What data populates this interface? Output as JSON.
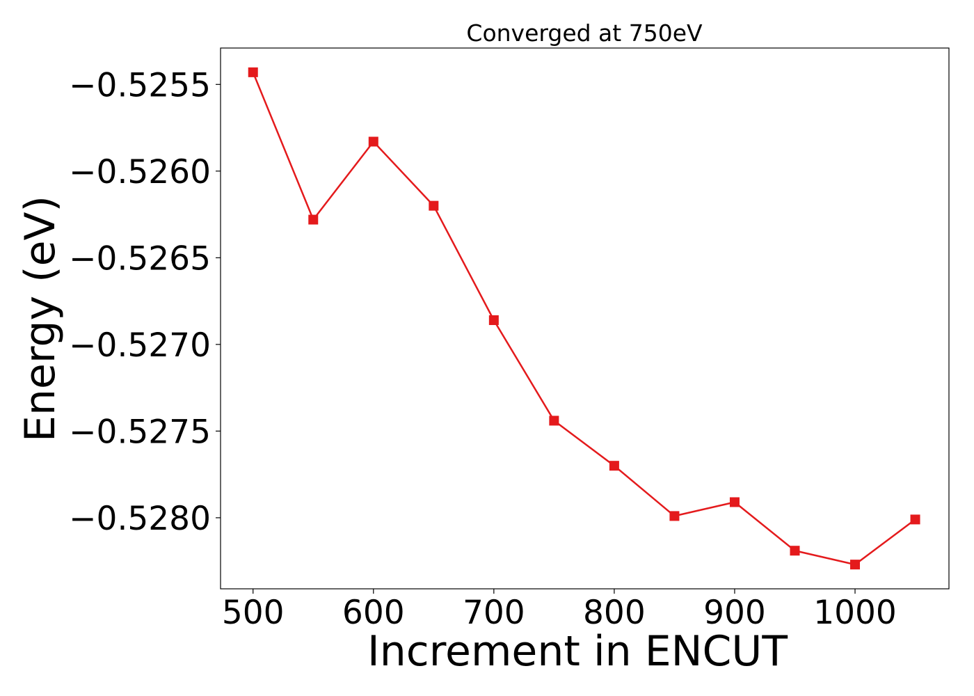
{
  "chart_data": {
    "type": "line",
    "title": "Converged at 750eV",
    "xlabel": "Increment in ENCUT",
    "ylabel": "Energy (eV)",
    "xlim": [
      473,
      1078
    ],
    "ylim": [
      -0.52841,
      -0.52529
    ],
    "xticks": [
      500,
      600,
      700,
      800,
      900,
      1000
    ],
    "xtick_labels": [
      "500",
      "600",
      "700",
      "800",
      "900",
      "1000"
    ],
    "yticks": [
      -0.5255,
      -0.526,
      -0.5265,
      -0.527,
      -0.5275,
      -0.528
    ],
    "ytick_labels": [
      "−0.5255",
      "−0.5260",
      "−0.5265",
      "−0.5270",
      "−0.5275",
      "−0.5280"
    ],
    "grid": false,
    "series": [
      {
        "color": "#e41a1c",
        "marker": "square",
        "x": [
          500,
          550,
          600,
          650,
          700,
          750,
          800,
          850,
          900,
          950,
          1000,
          1050
        ],
        "y": [
          -0.52543,
          -0.52628,
          -0.52583,
          -0.5262,
          -0.52686,
          -0.52744,
          -0.5277,
          -0.52799,
          -0.52791,
          -0.52819,
          -0.52827,
          -0.52801
        ]
      }
    ]
  }
}
